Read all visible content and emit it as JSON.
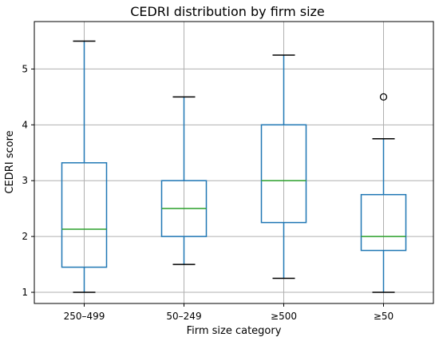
{
  "chart_data": {
    "type": "box",
    "title": "CEDRI distribution by firm size",
    "xlabel": "Firm size category",
    "ylabel": "CEDRI score",
    "ylim": [
      0.8,
      5.85
    ],
    "yticks": [
      1,
      2,
      3,
      4,
      5
    ],
    "grid": true,
    "box_color": "#1f77b4",
    "whisker_color": "#1f77b4",
    "median_color": "#2ca02c",
    "cap_color": "#000000",
    "categories": [
      "250–499",
      "50–249",
      "≥500",
      "≥50"
    ],
    "boxes": [
      {
        "category": "250–499",
        "whisker_low": 1.0,
        "q1": 1.45,
        "median": 2.13,
        "q3": 3.32,
        "whisker_high": 5.5,
        "outliers": []
      },
      {
        "category": "50–249",
        "whisker_low": 1.5,
        "q1": 2.0,
        "median": 2.5,
        "q3": 3.0,
        "whisker_high": 4.5,
        "outliers": []
      },
      {
        "category": "≥500",
        "whisker_low": 1.25,
        "q1": 2.25,
        "median": 3.0,
        "q3": 4.0,
        "whisker_high": 5.25,
        "outliers": []
      },
      {
        "category": "≥50",
        "whisker_low": 1.0,
        "q1": 1.75,
        "median": 2.0,
        "q3": 2.75,
        "whisker_high": 3.75,
        "outliers": [
          4.5
        ]
      }
    ]
  }
}
